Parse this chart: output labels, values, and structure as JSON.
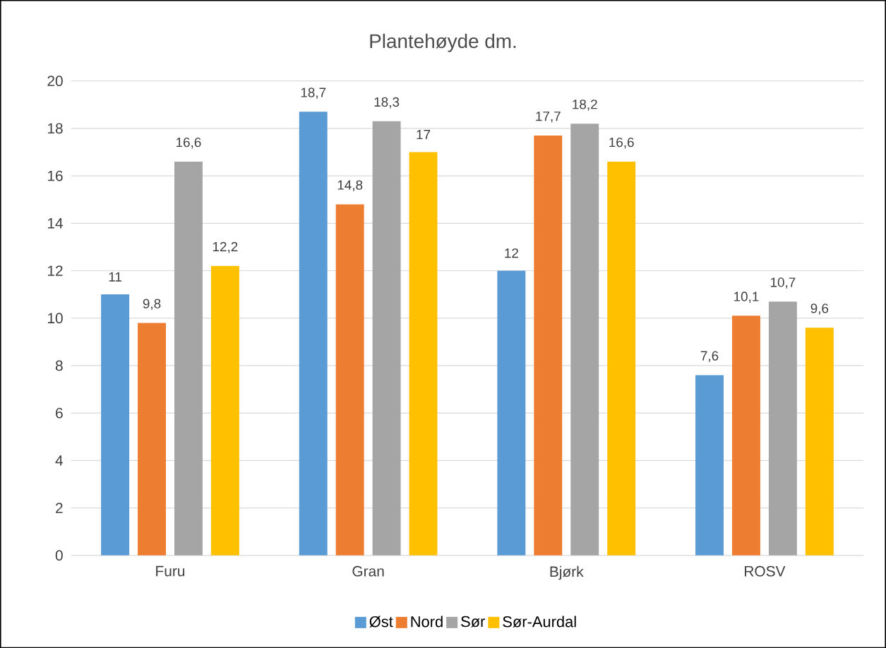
{
  "chart_data": {
    "type": "bar",
    "title": "Plantehøyde dm.",
    "categories": [
      "Furu",
      "Gran",
      "Bjørk",
      "ROSV"
    ],
    "series": [
      {
        "name": "Øst",
        "color": "#5b9bd5",
        "values": [
          11,
          18.7,
          12,
          7.6
        ],
        "value_labels": [
          "11",
          "18,7",
          "12",
          "7,6"
        ]
      },
      {
        "name": "Nord",
        "color": "#ed7d31",
        "values": [
          9.8,
          14.8,
          17.7,
          10.1
        ],
        "value_labels": [
          "9,8",
          "14,8",
          "17,7",
          "10,1"
        ]
      },
      {
        "name": "Sør",
        "color": "#a5a5a5",
        "values": [
          16.6,
          18.3,
          18.2,
          10.7
        ],
        "value_labels": [
          "16,6",
          "18,3",
          "18,2",
          "10,7"
        ]
      },
      {
        "name": "Sør-Aurdal",
        "color": "#ffc000",
        "values": [
          12.2,
          17,
          16.6,
          9.6
        ],
        "value_labels": [
          "12,2",
          "17",
          "16,6",
          "9,6"
        ]
      }
    ],
    "ylim": [
      0,
      20
    ],
    "yticks": [
      0,
      2,
      4,
      6,
      8,
      10,
      12,
      14,
      16,
      18,
      20
    ],
    "grid": "y",
    "legend": "bottom"
  }
}
